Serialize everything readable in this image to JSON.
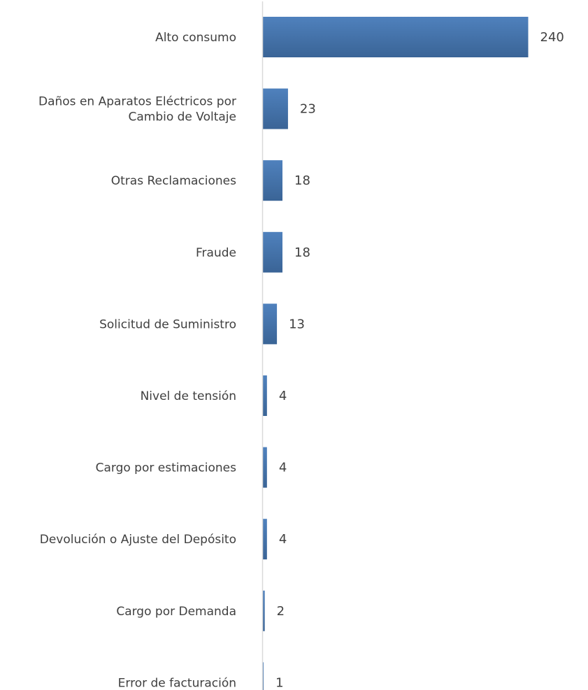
{
  "chart_data": {
    "type": "bar",
    "orientation": "horizontal",
    "categories": [
      [
        "Alto consumo"
      ],
      [
        "Daños en Aparatos Eléctricos por",
        "Cambio de Voltaje"
      ],
      [
        "Otras Reclamaciones"
      ],
      [
        "Fraude"
      ],
      [
        "Solicitud de Suministro"
      ],
      [
        "Nivel de tensión"
      ],
      [
        "Cargo por estimaciones"
      ],
      [
        "Devolución o Ajuste del Depósito"
      ],
      [
        "Cargo por Demanda"
      ],
      [
        "Error de facturación"
      ]
    ],
    "values": [
      240,
      23,
      18,
      18,
      13,
      4,
      4,
      4,
      2,
      1
    ],
    "value_labels": [
      "240",
      "23",
      "18",
      "18",
      "13",
      "4",
      "4",
      "4",
      "2",
      "1"
    ],
    "title": "",
    "xlabel": "",
    "ylabel": "",
    "xlim": [
      0,
      240
    ],
    "grid": false,
    "legend": "none",
    "colors": {
      "bar_top": "#4f81bd",
      "bar_bottom": "#3a6496",
      "axis": "#d9d9d9",
      "text": "#404040"
    }
  }
}
